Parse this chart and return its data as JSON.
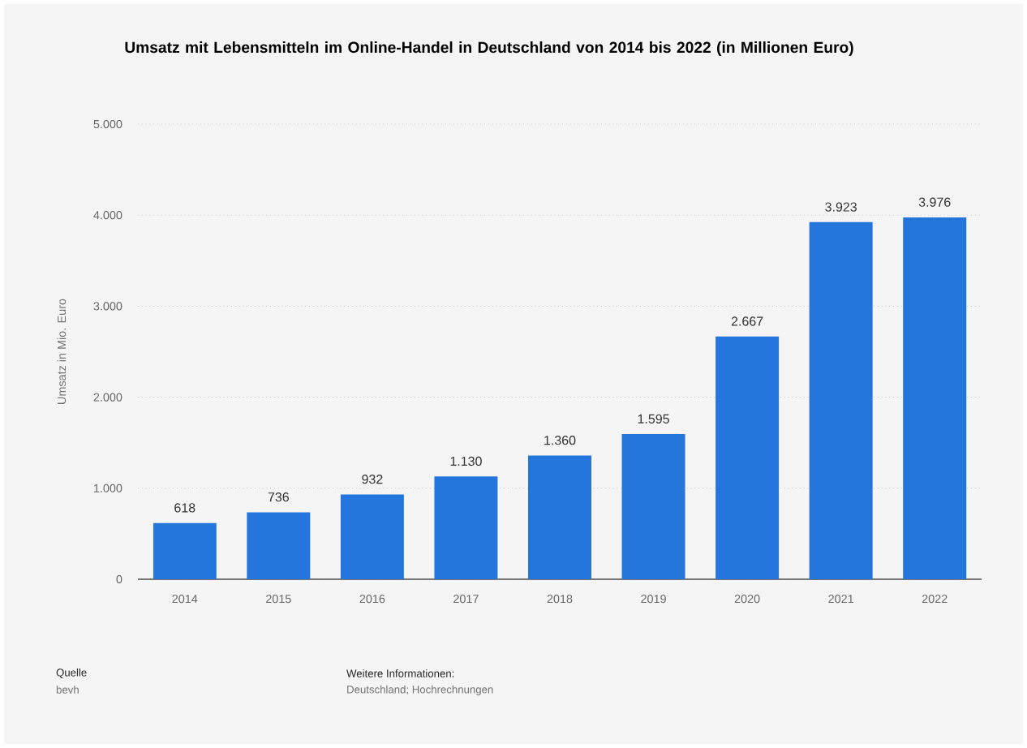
{
  "chart_data": {
    "type": "bar",
    "title": "Umsatz mit Lebensmitteln im Online-Handel in Deutschland von 2014 bis 2022 (in Millionen Euro)",
    "ylabel": "Umsatz in Mio. Euro",
    "categories": [
      "2014",
      "2015",
      "2016",
      "2017",
      "2018",
      "2019",
      "2020",
      "2021",
      "2022"
    ],
    "values": [
      618,
      736,
      932,
      1130,
      1360,
      1595,
      2667,
      3923,
      3976
    ],
    "value_labels": [
      "618",
      "736",
      "932",
      "1.130",
      "1.360",
      "1.595",
      "2.667",
      "3.923",
      "3.976"
    ],
    "color": "#2576dc",
    "ylim": [
      0,
      5000
    ],
    "yticks": [
      {
        "value": 0,
        "label": "0"
      },
      {
        "value": 1000,
        "label": "1.000"
      },
      {
        "value": 2000,
        "label": "2.000"
      },
      {
        "value": 3000,
        "label": "3.000"
      },
      {
        "value": 4000,
        "label": "4.000"
      },
      {
        "value": 5000,
        "label": "5.000"
      }
    ],
    "grid": "y",
    "annotations": [
      "Quelle",
      "bevh",
      "Weitere Informationen:",
      "Deutschland; Hochrechnungen"
    ]
  }
}
